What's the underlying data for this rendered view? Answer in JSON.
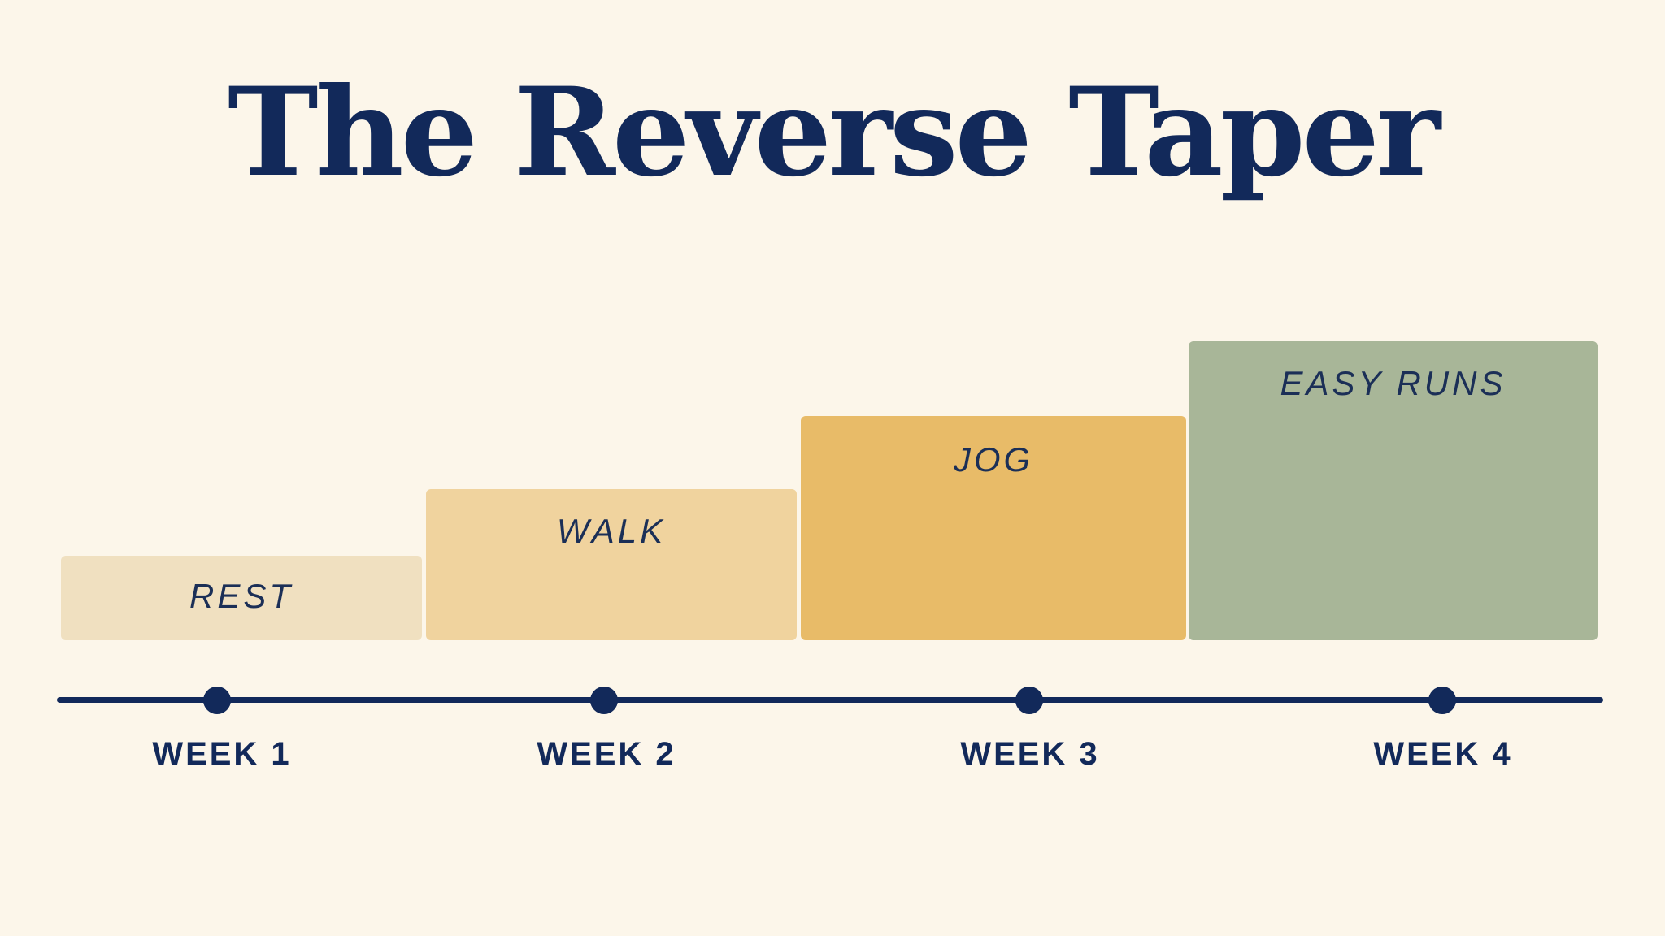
{
  "title": "The Reverse Taper",
  "colors": {
    "background": "#fcf6ea",
    "navy": "#12295a",
    "rest": "#f0e0c0",
    "walk": "#f0d39e",
    "jog": "#e8bb68",
    "easy_runs": "#a8b698"
  },
  "stages": [
    {
      "label": "REST",
      "level": 1
    },
    {
      "label": "WALK",
      "level": 2
    },
    {
      "label": "JOG",
      "level": 3
    },
    {
      "label": "EASY RUNS",
      "level": 4
    }
  ],
  "timeline": {
    "weeks": [
      "WEEK 1",
      "WEEK 2",
      "WEEK 3",
      "WEEK 4"
    ]
  }
}
